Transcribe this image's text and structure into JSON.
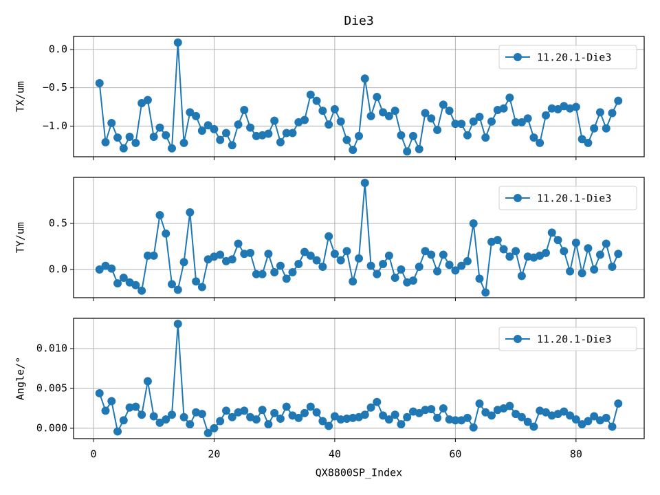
{
  "chart_data": [
    {
      "type": "line",
      "title": "Die3",
      "ylabel": "TX/um",
      "x": [
        1,
        2,
        3,
        4,
        5,
        6,
        7,
        8,
        9,
        10,
        11,
        12,
        13,
        14,
        15,
        16,
        17,
        18,
        19,
        20,
        21,
        22,
        23,
        24,
        25,
        26,
        27,
        28,
        29,
        30,
        31,
        32,
        33,
        34,
        35,
        36,
        37,
        38,
        39,
        40,
        41,
        42,
        43,
        44,
        45,
        46,
        47,
        48,
        49,
        50,
        51,
        52,
        53,
        54,
        55,
        56,
        57,
        58,
        59,
        60,
        61,
        62,
        63,
        64,
        65,
        66,
        67,
        68,
        69,
        70,
        71,
        72,
        73,
        74,
        75,
        76,
        77,
        78,
        79,
        80,
        81,
        82,
        83,
        84,
        85,
        86,
        87
      ],
      "series": [
        {
          "name": "11.20.1-Die3",
          "color": "#1f77b4",
          "values": [
            -0.44,
            -1.21,
            -0.96,
            -1.15,
            -1.29,
            -1.14,
            -1.22,
            -0.7,
            -0.66,
            -1.14,
            -1.02,
            -1.12,
            -1.29,
            0.09,
            -1.22,
            -0.82,
            -0.87,
            -1.06,
            -0.99,
            -1.04,
            -1.18,
            -1.09,
            -1.25,
            -0.98,
            -0.79,
            -1.02,
            -1.13,
            -1.12,
            -1.1,
            -0.93,
            -1.21,
            -1.09,
            -1.09,
            -0.95,
            -0.92,
            -0.59,
            -0.67,
            -0.8,
            -0.98,
            -0.78,
            -0.94,
            -1.18,
            -1.31,
            -1.13,
            -0.38,
            -0.87,
            -0.62,
            -0.82,
            -0.87,
            -0.8,
            -1.12,
            -1.33,
            -1.13,
            -1.3,
            -0.83,
            -0.9,
            -1.05,
            -0.72,
            -0.8,
            -0.97,
            -0.97,
            -1.12,
            -0.94,
            -0.88,
            -1.15,
            -0.94,
            -0.79,
            -0.77,
            -0.63,
            -0.95,
            -0.95,
            -0.9,
            -1.15,
            -1.22,
            -0.86,
            -0.77,
            -0.78,
            -0.74,
            -0.77,
            -0.75,
            -1.17,
            -1.22,
            -1.03,
            -0.82,
            -1.03,
            -0.83,
            -0.67
          ]
        }
      ],
      "xlim": [
        -3.3,
        91.3
      ],
      "ylim": [
        -1.4,
        0.17
      ],
      "yticks": [
        {
          "value": -1.0,
          "label": "−1.0"
        },
        {
          "value": -0.5,
          "label": "−0.5"
        },
        {
          "value": 0.0,
          "label": "0.0"
        }
      ],
      "grid": true,
      "legend": "upper right"
    },
    {
      "type": "line",
      "ylabel": "TY/um",
      "x": [
        1,
        2,
        3,
        4,
        5,
        6,
        7,
        8,
        9,
        10,
        11,
        12,
        13,
        14,
        15,
        16,
        17,
        18,
        19,
        20,
        21,
        22,
        23,
        24,
        25,
        26,
        27,
        28,
        29,
        30,
        31,
        32,
        33,
        34,
        35,
        36,
        37,
        38,
        39,
        40,
        41,
        42,
        43,
        44,
        45,
        46,
        47,
        48,
        49,
        50,
        51,
        52,
        53,
        54,
        55,
        56,
        57,
        58,
        59,
        60,
        61,
        62,
        63,
        64,
        65,
        66,
        67,
        68,
        69,
        70,
        71,
        72,
        73,
        74,
        75,
        76,
        77,
        78,
        79,
        80,
        81,
        82,
        83,
        84,
        85,
        86,
        87
      ],
      "series": [
        {
          "name": "11.20.1-Die3",
          "color": "#1f77b4",
          "values": [
            0.0,
            0.04,
            0.01,
            -0.15,
            -0.09,
            -0.14,
            -0.17,
            -0.23,
            0.15,
            0.15,
            0.59,
            0.39,
            -0.16,
            -0.22,
            0.08,
            0.62,
            -0.13,
            -0.19,
            0.11,
            0.14,
            0.16,
            0.09,
            0.11,
            0.28,
            0.17,
            0.18,
            -0.05,
            -0.05,
            0.17,
            -0.03,
            0.04,
            -0.1,
            -0.03,
            0.06,
            0.19,
            0.15,
            0.1,
            0.03,
            0.36,
            0.17,
            0.1,
            0.2,
            -0.13,
            0.12,
            0.94,
            0.04,
            -0.05,
            0.06,
            0.15,
            -0.09,
            0.0,
            -0.14,
            -0.12,
            0.03,
            0.2,
            0.16,
            -0.02,
            0.16,
            0.05,
            -0.01,
            0.04,
            0.09,
            0.5,
            -0.1,
            -0.25,
            0.3,
            0.32,
            0.22,
            0.14,
            0.2,
            -0.07,
            0.14,
            0.13,
            0.15,
            0.18,
            0.4,
            0.32,
            0.2,
            -0.02,
            0.29,
            -0.04,
            0.23,
            0.0,
            0.16,
            0.28,
            0.03,
            0.17
          ]
        }
      ],
      "xlim": [
        -3.3,
        91.3
      ],
      "ylim": [
        -0.306,
        1.0
      ],
      "yticks": [
        {
          "value": 0.0,
          "label": "0.0"
        },
        {
          "value": 0.5,
          "label": "0.5"
        }
      ],
      "grid": true,
      "legend": "upper right"
    },
    {
      "type": "line",
      "ylabel": "Angle/°",
      "xlabel": "QX8800SP_Index",
      "x": [
        1,
        2,
        3,
        4,
        5,
        6,
        7,
        8,
        9,
        10,
        11,
        12,
        13,
        14,
        15,
        16,
        17,
        18,
        19,
        20,
        21,
        22,
        23,
        24,
        25,
        26,
        27,
        28,
        29,
        30,
        31,
        32,
        33,
        34,
        35,
        36,
        37,
        38,
        39,
        40,
        41,
        42,
        43,
        44,
        45,
        46,
        47,
        48,
        49,
        50,
        51,
        52,
        53,
        54,
        55,
        56,
        57,
        58,
        59,
        60,
        61,
        62,
        63,
        64,
        65,
        66,
        67,
        68,
        69,
        70,
        71,
        72,
        73,
        74,
        75,
        76,
        77,
        78,
        79,
        80,
        81,
        82,
        83,
        84,
        85,
        86,
        87
      ],
      "series": [
        {
          "name": "11.20.1-Die3",
          "color": "#1f77b4",
          "values": [
            0.0044,
            0.0022,
            0.0034,
            -0.0004,
            0.001,
            0.0026,
            0.0027,
            0.0017,
            0.0059,
            0.0015,
            0.0007,
            0.0011,
            0.0017,
            0.0131,
            0.0014,
            0.0005,
            0.002,
            0.0018,
            -0.0006,
            0.0,
            0.0009,
            0.0022,
            0.0014,
            0.002,
            0.0022,
            0.0014,
            0.0011,
            0.0023,
            0.0005,
            0.0019,
            0.0012,
            0.0027,
            0.0016,
            0.0013,
            0.0019,
            0.0027,
            0.002,
            0.0009,
            0.0003,
            0.0015,
            0.0011,
            0.0012,
            0.0013,
            0.0014,
            0.0017,
            0.0026,
            0.0033,
            0.0016,
            0.0011,
            0.0017,
            0.0005,
            0.0014,
            0.0021,
            0.0019,
            0.0023,
            0.0024,
            0.0013,
            0.0025,
            0.0011,
            0.001,
            0.001,
            0.0013,
            0.0001,
            0.0031,
            0.002,
            0.0016,
            0.0023,
            0.0025,
            0.0028,
            0.0018,
            0.0014,
            0.0008,
            0.0002,
            0.0022,
            0.002,
            0.0016,
            0.0018,
            0.0021,
            0.0016,
            0.0011,
            0.0005,
            0.0009,
            0.0015,
            0.001,
            0.0013,
            0.0002,
            0.0031
          ]
        }
      ],
      "xlim": [
        -3.3,
        91.3
      ],
      "ylim": [
        -0.0013,
        0.0138
      ],
      "xticks": [
        0,
        20,
        40,
        60,
        80
      ],
      "yticks": [
        {
          "value": 0.0,
          "label": "0.000"
        },
        {
          "value": 0.005,
          "label": "0.005"
        },
        {
          "value": 0.01,
          "label": "0.010"
        }
      ],
      "grid": true,
      "legend": "upper right"
    }
  ]
}
